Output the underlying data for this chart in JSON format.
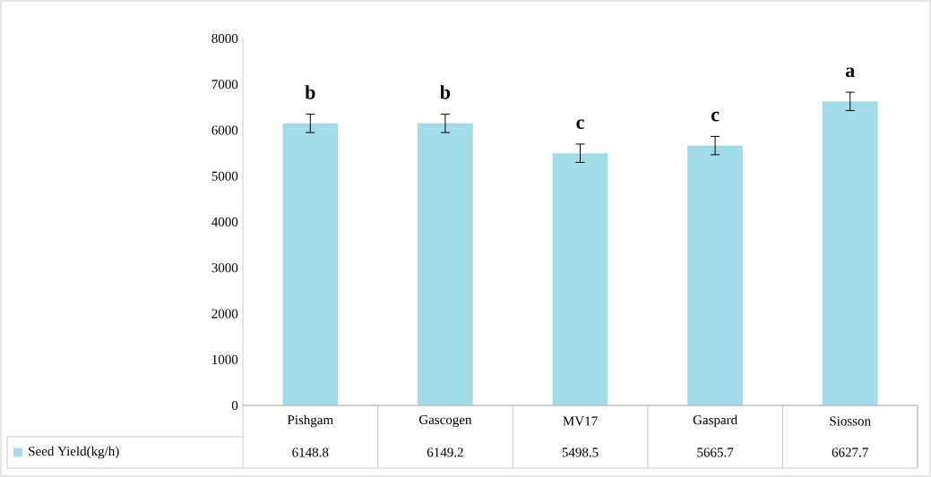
{
  "chart_data": {
    "type": "bar",
    "categories": [
      "Pishgam",
      "Gascogen",
      "MV17",
      "Gaspard",
      "Siosson"
    ],
    "series": [
      {
        "name": "Seed Yield(kg/h)",
        "color": "#a3dce6",
        "values": [
          6148.8,
          6149.2,
          5498.5,
          5665.7,
          6627.7
        ],
        "errors": [
          200,
          200,
          200,
          200,
          200
        ]
      }
    ],
    "ylim": [
      0,
      8000
    ],
    "yticks": [
      0,
      1000,
      2000,
      3000,
      4000,
      5000,
      6000,
      7000,
      8000
    ],
    "data_labels": true,
    "legend": "bottom",
    "grid": false,
    "annotations": [
      "b",
      "b",
      "c",
      "c",
      "a"
    ]
  }
}
